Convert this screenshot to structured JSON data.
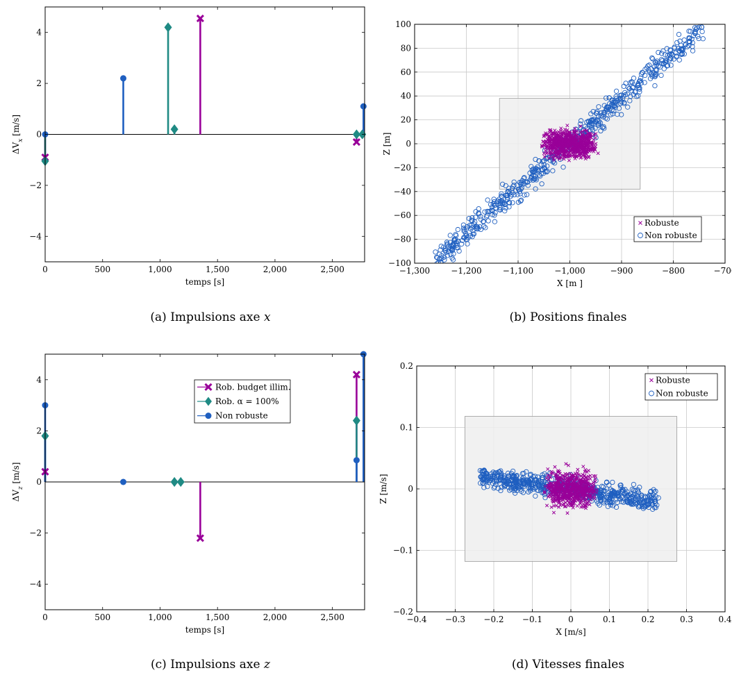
{
  "colors": {
    "robust": "#990099",
    "alpha": "#1f8a84",
    "nonrobust": "#1f5fc0",
    "box": "#ececec"
  },
  "chart_data": [
    {
      "id": "a",
      "type": "stem",
      "caption": "(a) Impulsions axe x",
      "xlabel": "temps [s]",
      "ylabel": "ΔV_x [m/s]",
      "xlim": [
        0,
        2780
      ],
      "ylim": [
        -5,
        5
      ],
      "xticks": [
        0,
        500,
        1000,
        1500,
        2000,
        2500
      ],
      "xtick_labels": [
        "0",
        "500",
        "1,000",
        "1,500",
        "2,000",
        "2,500"
      ],
      "yticks": [
        -4,
        -2,
        0,
        2,
        4
      ],
      "ytick_labels": [
        "−4",
        "−2",
        "0",
        "2",
        "4"
      ],
      "series": [
        {
          "marker": "x",
          "color": "robust",
          "points": [
            [
              0,
              -0.9
            ],
            [
              1350,
              4.55
            ],
            [
              2710,
              -0.3
            ]
          ]
        },
        {
          "marker": "diamond",
          "color": "alpha",
          "points": [
            [
              0,
              -1.05
            ],
            [
              1070,
              4.2
            ],
            [
              1125,
              0.2
            ],
            [
              2710,
              0.0
            ],
            [
              2760,
              0.0
            ]
          ]
        },
        {
          "marker": "circle",
          "color": "nonrobust",
          "points": [
            [
              0,
              0.0
            ],
            [
              680,
              2.2
            ],
            [
              2770,
              1.1
            ]
          ]
        }
      ]
    },
    {
      "id": "b",
      "type": "scatter",
      "caption": "(b) Positions finales",
      "xlabel": "X [m ]",
      "ylabel": "Z [m]",
      "xlim": [
        -1300,
        -700
      ],
      "ylim": [
        -100,
        100
      ],
      "xticks": [
        -1300,
        -1200,
        -1100,
        -1000,
        -900,
        -800,
        -700
      ],
      "xtick_labels": [
        "−1,300",
        "−1,200",
        "−1,100",
        "−1,000",
        "−900",
        "−800",
        "−700"
      ],
      "yticks": [
        -100,
        -80,
        -60,
        -40,
        -20,
        0,
        20,
        40,
        60,
        80,
        100
      ],
      "ytick_labels": [
        "−100",
        "−80",
        "−60",
        "−40",
        "−20",
        "0",
        "20",
        "40",
        "60",
        "80",
        "100"
      ],
      "grid": true,
      "box": {
        "x": [
          -1136,
          -864
        ],
        "y": [
          -38,
          38
        ]
      },
      "legend": {
        "placement": "bottom-right",
        "entries": [
          "Robuste",
          "Non robuste"
        ]
      },
      "series": [
        {
          "name": "Robuste",
          "marker": "x",
          "color": "robust",
          "cloud": {
            "count": 700,
            "x": [
              -1055,
              -945
            ],
            "y": [
              -18,
              18
            ]
          }
        },
        {
          "name": "Non robuste",
          "marker": "circle-open",
          "color": "nonrobust",
          "cloud": {
            "count": 600,
            "line_x": [
              -1260,
              -745
            ],
            "line_y": [
              -98,
              96
            ],
            "spread": 7
          }
        }
      ]
    },
    {
      "id": "c",
      "type": "stem",
      "caption": "(c) Impulsions axe z",
      "xlabel": "temps [s]",
      "ylabel": "ΔV_z [m/s]",
      "xlim": [
        0,
        2780
      ],
      "ylim": [
        -5,
        5
      ],
      "xticks": [
        0,
        500,
        1000,
        1500,
        2000,
        2500
      ],
      "xtick_labels": [
        "0",
        "500",
        "1,000",
        "1,500",
        "2,000",
        "2,500"
      ],
      "yticks": [
        -4,
        -2,
        0,
        2,
        4
      ],
      "ytick_labels": [
        "−4",
        "−2",
        "0",
        "2",
        "4"
      ],
      "legend": {
        "placement": "top-right",
        "entries": [
          "Rob. budget illim.",
          "Rob. α = 100%",
          "Non robuste"
        ]
      },
      "series": [
        {
          "name": "Rob. budget illim.",
          "marker": "x",
          "color": "robust",
          "points": [
            [
              0,
              0.4
            ],
            [
              1350,
              -2.2
            ],
            [
              2710,
              4.2
            ]
          ]
        },
        {
          "name": "Rob. α = 100%",
          "marker": "diamond",
          "color": "alpha",
          "points": [
            [
              0,
              1.8
            ],
            [
              1125,
              0.0
            ],
            [
              1180,
              0.0
            ],
            [
              2710,
              2.4
            ]
          ]
        },
        {
          "name": "Non robuste",
          "marker": "circle",
          "color": "nonrobust",
          "points": [
            [
              0,
              3.0
            ],
            [
              680,
              0.0
            ],
            [
              2710,
              0.85
            ],
            [
              2770,
              5.0
            ]
          ]
        }
      ]
    },
    {
      "id": "d",
      "type": "scatter",
      "caption": "(d) Vitesses finales",
      "xlabel": "X [m/s]",
      "ylabel": "Z [m/s]",
      "xlim": [
        -0.4,
        0.4
      ],
      "ylim": [
        -0.2,
        0.2
      ],
      "xticks": [
        -0.4,
        -0.3,
        -0.2,
        -0.1,
        0,
        0.1,
        0.2,
        0.3,
        0.4
      ],
      "xtick_labels": [
        "−0.4",
        "−0.3",
        "−0.2",
        "−0.1",
        "0",
        "0.1",
        "0.2",
        "0.3",
        "0.4"
      ],
      "yticks": [
        -0.2,
        -0.1,
        0,
        0.1,
        0.2
      ],
      "ytick_labels": [
        "−0.2",
        "−0.1",
        "0",
        "0.1",
        "0.2"
      ],
      "grid": true,
      "box": {
        "x": [
          -0.275,
          0.275
        ],
        "y": [
          -0.118,
          0.118
        ]
      },
      "legend": {
        "placement": "top-right",
        "entries": [
          "Robuste",
          "Non robuste"
        ]
      },
      "series": [
        {
          "name": "Robuste",
          "marker": "x",
          "color": "robust",
          "cloud": {
            "count": 600,
            "x": [
              -0.07,
              0.07
            ],
            "y": [
              -0.045,
              0.045
            ]
          }
        },
        {
          "name": "Non robuste",
          "marker": "circle-open",
          "color": "nonrobust",
          "cloud": {
            "count": 650,
            "line_x": [
              -0.235,
              0.225
            ],
            "line_y": [
              0.02,
              -0.02
            ],
            "spread": 0.012
          }
        }
      ]
    }
  ]
}
